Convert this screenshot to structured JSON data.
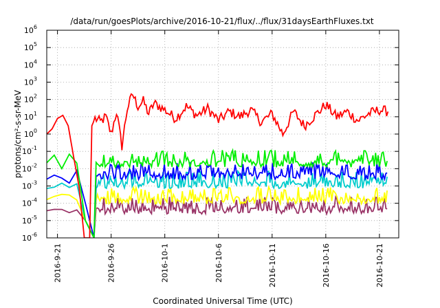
{
  "chart_data": {
    "type": "line",
    "title": "/data/run/goesPlots/archive/2016-10-21/flux/../flux/31daysEarthFluxes.txt",
    "xlabel": "Coordinated Universal Time (UTC)",
    "ylabel": "protons/cm²-s-sr-MeV",
    "yscale": "log",
    "ylim_exponents": [
      -6,
      6
    ],
    "xlim": [
      "2016-09-20",
      "2016-10-22.8"
    ],
    "x_tick_labels": [
      "2016-9-21",
      "2016-9-26",
      "2016-10-1",
      "2016-10-6",
      "2016-10-11",
      "2016-10-16",
      "2016-10-21"
    ],
    "y_tick_labels": [
      {
        "base": "10",
        "exp": "-6"
      },
      {
        "base": "10",
        "exp": "-5"
      },
      {
        "base": "10",
        "exp": "-4"
      },
      {
        "base": "10",
        "exp": "-3"
      },
      {
        "base": "10",
        "exp": "-2"
      },
      {
        "base": "10",
        "exp": "-1"
      },
      {
        "base": "10",
        "exp": "0"
      },
      {
        "base": "10",
        "exp": "1"
      },
      {
        "base": "10",
        "exp": "2"
      },
      {
        "base": "10",
        "exp": "3"
      },
      {
        "base": "10",
        "exp": "4"
      },
      {
        "base": "10",
        "exp": "5"
      },
      {
        "base": "10",
        "exp": "6"
      }
    ],
    "grid": true,
    "series": [
      {
        "color": "#ff0000",
        "x_days": [
          0,
          0.5,
          1,
          1.5,
          2,
          2.5,
          3,
          3.5,
          4,
          4.2,
          4.5,
          5,
          5.5,
          6,
          6.5,
          7,
          7.5,
          8,
          8.5,
          9,
          9.5,
          10,
          11,
          12,
          13,
          14,
          15,
          16,
          17,
          18,
          19,
          20,
          21,
          22,
          23,
          24,
          25,
          26,
          27,
          28,
          29,
          30,
          31,
          31.8
        ],
        "values": [
          1,
          2,
          8,
          12,
          3,
          0.05,
          0.001,
          1e-06,
          1e-06,
          3,
          8,
          5,
          10,
          1,
          20,
          0.2,
          30,
          200,
          40,
          80,
          15,
          60,
          25,
          8,
          40,
          12,
          30,
          6,
          20,
          10,
          25,
          5,
          15,
          1,
          20,
          3,
          12,
          50,
          10,
          20,
          6,
          15,
          25,
          20
        ]
      },
      {
        "color": "#00ee00",
        "level": 0.02,
        "start_values": [
          0.03,
          0.05,
          0.008,
          0.05,
          0.02,
          1e-05,
          1e-06
        ]
      },
      {
        "color": "#0000ff",
        "level": 0.004,
        "start_values": [
          0.003,
          0.003,
          0.003,
          0.002,
          0.005,
          0.0001,
          1e-06
        ]
      },
      {
        "color": "#00cccc",
        "level": 0.0012,
        "start_values": [
          0.001,
          0.001,
          0.001,
          0.0008,
          0.001,
          1e-05,
          1e-06
        ]
      },
      {
        "color": "#ffff00",
        "level": 0.00015,
        "start_values": [
          0.0002,
          0.0002,
          0.0003,
          0.0002,
          0.0002,
          1e-05,
          1e-06
        ]
      },
      {
        "color": "#993366",
        "level": 4e-05,
        "start_values": [
          4e-05,
          5e-05,
          6e-05,
          2e-05,
          5e-05,
          1e-05,
          1e-06
        ]
      }
    ]
  }
}
